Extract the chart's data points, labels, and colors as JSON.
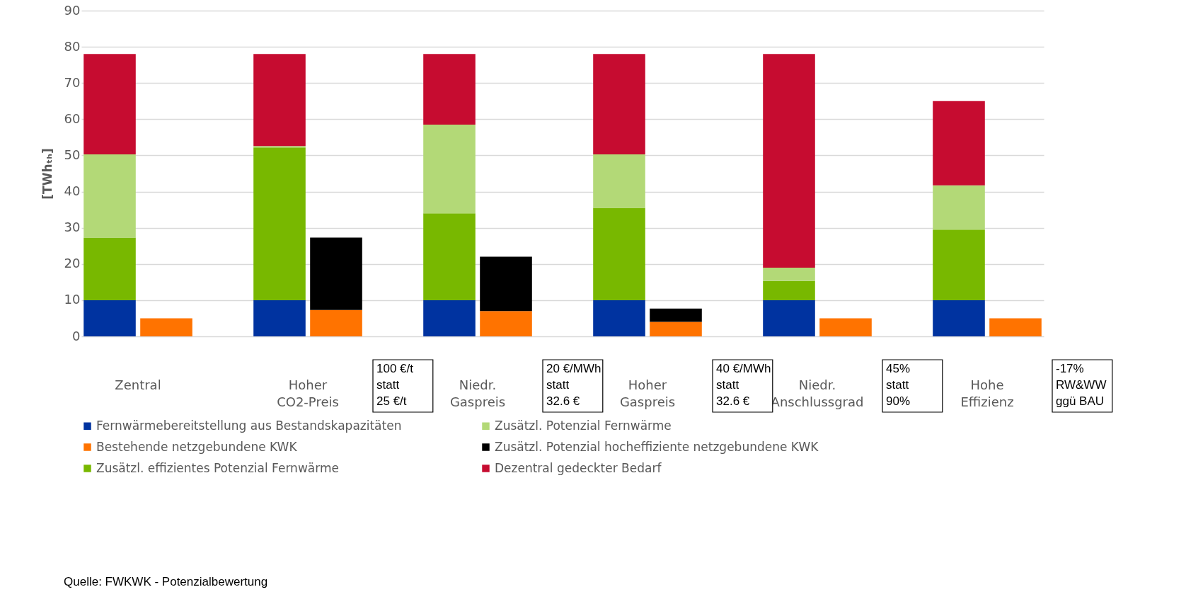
{
  "chart_data": {
    "type": "bar",
    "stacked": true,
    "ylabel": "[TWhₜₕ]",
    "categories": [
      "Zentral",
      null,
      null,
      "Hoher CO2-Preis",
      null,
      null,
      "Niedr. Gaspreis",
      null,
      null,
      "Hoher Gaspreis",
      null,
      null,
      "Niedr. Anschlussgrad",
      null,
      null,
      "Hohe Effizienz",
      null
    ],
    "series": [
      {
        "name": "Fernwärmebereitstellung aus Bestandskapazitäten",
        "color": "#0033a0",
        "values": [
          10,
          null,
          null,
          10,
          null,
          null,
          10,
          null,
          null,
          10,
          null,
          null,
          10,
          null,
          null,
          10,
          null
        ]
      },
      {
        "name": "Bestehende netzgebundene KWK",
        "color": "#ff7300",
        "values": [
          null,
          5,
          null,
          null,
          7.3,
          null,
          null,
          7,
          null,
          null,
          4,
          null,
          null,
          5,
          null,
          null,
          5
        ]
      },
      {
        "name": "Zusätzl. effizientes Potenzial Fernwärme",
        "color": "#78b800",
        "values": [
          17.3,
          null,
          null,
          42.2,
          null,
          null,
          24,
          null,
          null,
          25.5,
          null,
          null,
          5.3,
          null,
          null,
          19.5,
          null
        ]
      },
      {
        "name": "Zusätzl. Potenzial Fernwärme",
        "color": "#b3d977",
        "values": [
          23,
          null,
          null,
          0.4,
          null,
          null,
          24.5,
          null,
          null,
          14.8,
          null,
          null,
          3.7,
          null,
          null,
          12.2,
          null
        ]
      },
      {
        "name": "Zusätzl. Potenzial hocheffiziente netzgebundene KWK",
        "color": "#000000",
        "values": [
          null,
          null,
          null,
          null,
          20,
          null,
          null,
          15,
          null,
          null,
          3.7,
          null,
          null,
          null,
          null,
          null,
          null
        ]
      },
      {
        "name": "Dezentral gedeckter Bedarf",
        "color": "#c60c30",
        "values": [
          27.7,
          null,
          null,
          25.4,
          null,
          null,
          19.5,
          null,
          null,
          27.7,
          null,
          null,
          59,
          null,
          null,
          23.3,
          null
        ]
      }
    ],
    "ylim": [
      0,
      90
    ],
    "yticks": [
      0,
      10,
      20,
      30,
      40,
      50,
      60,
      70,
      80,
      90
    ],
    "grid": "y",
    "legend": "bottom left",
    "annotations": [
      "100 €/t\nstatt\n25 €/t",
      "20 €/MWh\nstatt\n32.6 €",
      "40 €/MWh\nstatt\n32.6 €",
      "45%\nstatt\n90%",
      "-17%\nRW&WW\nggü BAU",
      "Quelle: FWKWK - Potenzialbewertung"
    ]
  }
}
